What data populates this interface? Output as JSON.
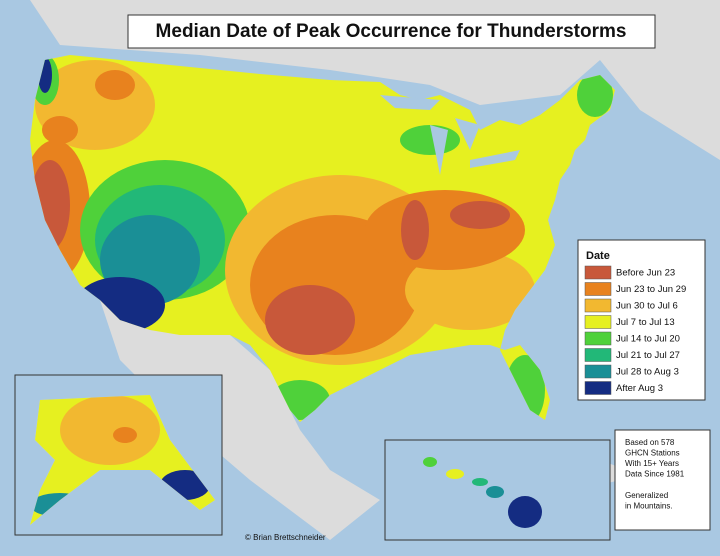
{
  "title": "Median Date of Peak Occurrence for Thunderstorms",
  "legend": {
    "title": "Date",
    "items": [
      {
        "label": "Before Jun 23",
        "color": "#c8583a"
      },
      {
        "label": "Jun 23 to Jun 29",
        "color": "#e8821e"
      },
      {
        "label": "Jun 30 to Jul 6",
        "color": "#f2b830"
      },
      {
        "label": "Jul 7 to Jul 13",
        "color": "#e6f020"
      },
      {
        "label": "Jul 14 to Jul 20",
        "color": "#4fd13a"
      },
      {
        "label": "Jul 21 to Jul 27",
        "color": "#22b878"
      },
      {
        "label": "Jul 28 to Aug 3",
        "color": "#1a8f96"
      },
      {
        "label": "After Aug 3",
        "color": "#142c82"
      }
    ]
  },
  "note": [
    "Based on 578",
    "GHCN Stations",
    "With 15+ Years",
    "Data Since 1981"
  ],
  "note2": [
    "Generalized",
    "in Mountains."
  ],
  "credit": "© Brian Brettschneider"
}
